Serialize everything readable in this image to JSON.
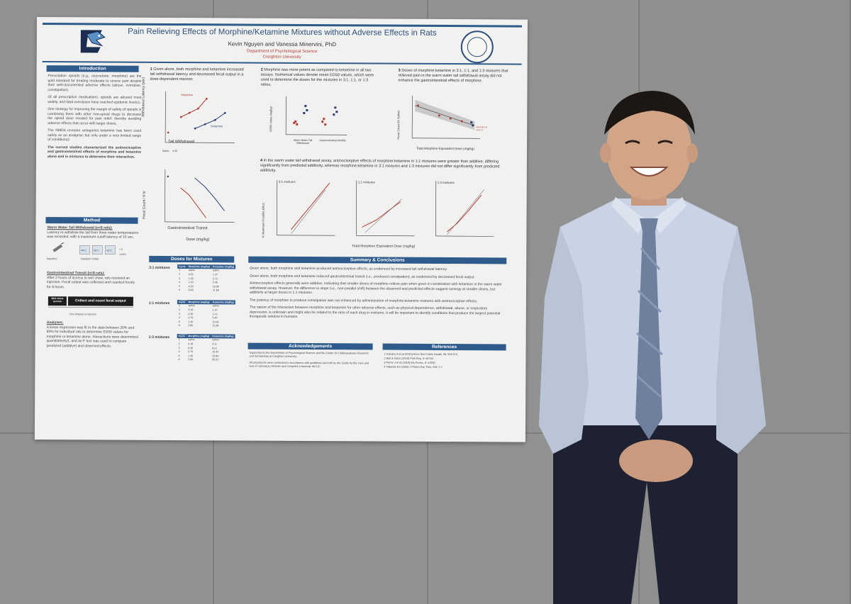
{
  "poster": {
    "title": "Pain Relieving Effects of Morphine/Ketamine Mixtures without Adverse Effects in Rats",
    "authors": "Kevin Nguyen and Vanessa Minervini, PhD",
    "department": "Department of Psychological Science",
    "university": "Creighton University",
    "sections": {
      "introduction": "Introduction",
      "method": "Method",
      "doses": "Doses for Mixtures",
      "summary": "Summary & Conclusions",
      "acknowledgements": "Acknowledgements",
      "references": "References"
    },
    "intro_paragraphs": [
      "Prescription opioids (e.g., oxycodone, morphine) are the gold standard for treating moderate to severe pain despite their well-documented adverse effects (abuse, overdose, constipation).",
      "Of all prescription medications, opioids are abused most widely, and fatal overdoses have reached epidemic levels1.",
      "One strategy for improving the margin of safety of opioids is combining them with other non-opioid drugs to decrease the opioid dose needed for pain relief, thereby avoiding adverse effects that occur with larger doses.",
      "The NMDA receptor antagonist ketamine has been used safely as an analgesic but only under a very limited range of conditions2.",
      "The current studies characterized the antinociceptive and gastrointestinal effects of morphine and ketamine alone and in mixtures to determine their interaction."
    ],
    "method_text": {
      "ww_title": "Warm Water Tail Withdrawal (n=8 rats):",
      "ww_body": "Latency to withdraw the tail from three water temperatures was recorded, with a maximum cutoff latency of 15 sec.",
      "injection": "Injection",
      "random_order": "Random Order",
      "temps": [
        "40°C",
        "50°C",
        "55°C"
      ],
      "cycles": "x 6 cycles",
      "gi_title": "Gastrointestinal Transit (n=8 rats):",
      "gi_body": "After 2 hours of access to wet chow, rats received an injection. Fecal output was collected and counted hourly for 6 hours.",
      "wet_chow": "Wet chow access",
      "collect": "Collect and count fecal output",
      "time_axis": "Time Relative to Injection",
      "analyses_title": "Analyses:",
      "analyses_body": "A linear regression was fit to the data between 20% and 80% for individual rats to determine ED50 values for morphine or ketamine alone. Interactions were determined quantitatively3, and an F test was used to compare predicted (additive) and observed effects."
    },
    "fig1": {
      "caption_num": "1",
      "caption": "Given alone, both morphine and ketamine increased tail withdrawal latency and decreased fecal output in a dose-dependent manner.",
      "ylabel_top": "Withdrawal Latency (sec)",
      "label_morphine": "Morphine",
      "label_ketamine": "Ketamine",
      "panel_top": "Tail Withdrawal",
      "ylabel_bottom": "Fecal Count / 6 hr",
      "panel_bottom": "Gastrointestinal Transit",
      "xlabel": "Dose (mg/kg)",
      "ticks": [
        "Saline 0.56",
        "1",
        "1.78",
        "3.2",
        "5.6",
        "10",
        "17.8",
        "32"
      ]
    },
    "fig2": {
      "caption_num": "2",
      "caption": "Morphine was more potent as compared to ketamine in all two assays. Numerical values denote mean ED50 values, which were used to determine the doses for the mixtures in 3:1, 1:1, or 1:3 ratios.",
      "ylabel": "ED50 Value (mg/kg)",
      "cats": [
        "Warm Water Tail Withdrawal",
        "Gastrointestinal Motility"
      ]
    },
    "fig3": {
      "caption_num": "3",
      "caption": "Doses of morphine:ketamine in 3:1, 1:1, and 1:3 mixtures that relieved pain in the warm water tail withdrawal assay did not enhance the gastrointestinal effects of morphine.",
      "ylabel": "Fecal Count (% Saline)",
      "xlabel": "Total Morphine Equivalent Dose (mg/kg)",
      "legend": "Morphine at 95% CI"
    },
    "fig4": {
      "caption_num": "4",
      "caption": "In the warm water tail withdrawal assay, antinociceptive effects of morphine:ketamine in 1:1 mixtures were greater than additive, differing significantly from predicted additivity, whereas morphine:ketamine in 3:1 mixtures and 1:3 mixtures did not differ significantly from predicted additivity.",
      "ylabel": "% Maximum Possible Effect",
      "xlabel": "Total Morphine Equivalent Dose (mg/kg)",
      "panels": [
        "3:1 mixtures",
        "1:1 mixtures",
        "1:3 mixtures"
      ]
    },
    "doses_table": {
      "headers": [
        "Cycle",
        "Morphine (mg/kg)",
        "Ketamine (mg/kg)"
      ],
      "groups": [
        {
          "label": "3:1 mixtures",
          "rows": [
            [
              "1",
              "saline",
              "saline"
            ],
            [
              "2",
              "0.52",
              "1.37"
            ],
            [
              "3",
              "1.05",
              "2.73"
            ],
            [
              "4",
              "2.10",
              "5.46"
            ],
            [
              "5",
              "4.20",
              "10.85"
            ],
            [
              "6",
              "8.40",
              "21.89"
            ]
          ]
        },
        {
          "label": "1:1 mixtures",
          "rows": [
            [
              "1",
              "saline",
              "saline"
            ],
            [
              "2",
              "0.18",
              "1.37"
            ],
            [
              "3",
              "0.35",
              "2.73"
            ],
            [
              "4",
              "0.70",
              "5.46"
            ],
            [
              "5",
              "1.40",
              "10.95"
            ],
            [
              "6",
              "2.80",
              "21.89"
            ]
          ]
        },
        {
          "label": "1:3 mixtures",
          "rows": [
            [
              "1",
              "saline",
              "saline"
            ],
            [
              "2",
              "0.18",
              "4.11"
            ],
            [
              "3",
              "0.35",
              "8.21"
            ],
            [
              "4",
              "0.70",
              "16.42"
            ],
            [
              "5",
              "1.40",
              "32.84"
            ],
            [
              "6",
              "2.80",
              "65.67"
            ]
          ]
        }
      ]
    },
    "summary_paragraphs": [
      "Given alone, both morphine and ketamine produced antinociceptive effects, as evidenced by increased tail withdrawal latency.",
      "Given alone, both morphine and ketamine reduced gastrointestinal transit (i.e., produced constipation), as evidenced by decreased fecal output.",
      "Antinociceptive effects generally were additive, indicating that smaller doses of morphine relieve pain when given in combination with ketamine in the warm water withdrawal assay. However, the difference in slope (i.e., non-parallel shift) between the observed and predicted effects suggest synergy at smaller doses, but additivity at larger doses in 1:1 mixtures.",
      "The potency of morphine to produce constipation was not enhanced by administration of morphine:ketamine mixtures with antinociceptive effects.",
      "The nature of the interaction between morphine and ketamine for other adverse effects, such as physical dependence, withdrawal, abuse, or respiratory depression, is unknown and might also be related to the ratio of each drug in mixtures. It will be important to identify conditions that produce the largest potential therapeutic window in humans."
    ],
    "ack_paragraphs": [
      "Supported by the Department of Psychological Science and the Center for Undergraduate Research and Scholarship at Creighton University.",
      "All procedures were conducted in accordance with guidelines set forth by the Guide for the Care and Use of Laboratory Animals and Creighton University IACUC."
    ],
    "references": [
      "1 Kolodny A et al (2015) Annu Rev Public Health, 36: 559-574",
      "2 Bell & Kalso (2018) Pain Rep, 3: e6740",
      "3 Ferrer J et al (2016) Bio Protoc, 6: e1933",
      "4 Tallarida RJ (2006) J Pharm Exp Ther, 319: 1-7"
    ]
  },
  "colors": {
    "poster_accent": "#2f5b8c",
    "morphine_red": "#b23a3a",
    "ketamine_navy": "#2b3e7a",
    "wall_gray": "#8f908f",
    "shirt": "#c9d3e3",
    "pants": "#1e2132"
  },
  "icons": [
    "bluejay-logo-icon",
    "university-seal-icon",
    "syringe-icon",
    "beaker-icon"
  ]
}
